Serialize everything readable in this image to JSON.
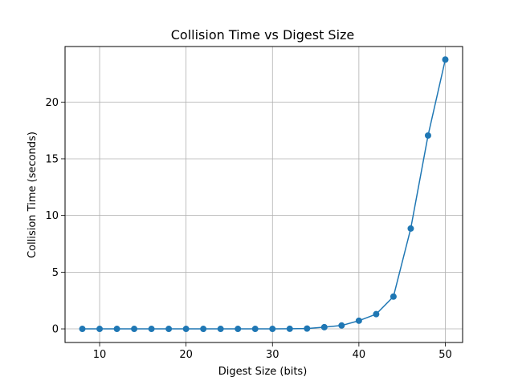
{
  "chart_data": {
    "type": "line",
    "title": "Collision Time vs Digest Size",
    "xlabel": "Digest Size (bits)",
    "ylabel": "Collision Time (seconds)",
    "xlim": [
      6,
      52
    ],
    "ylim": [
      -1.2,
      24.9
    ],
    "xticks": [
      10,
      20,
      30,
      40,
      50
    ],
    "yticks": [
      0,
      5,
      10,
      15,
      20
    ],
    "grid": true,
    "series": [
      {
        "color": "#1f77b4",
        "marker": "circle",
        "x": [
          8,
          10,
          12,
          14,
          16,
          18,
          20,
          22,
          24,
          26,
          28,
          30,
          32,
          34,
          36,
          38,
          40,
          42,
          44,
          46,
          48,
          50
        ],
        "y": [
          0,
          0,
          0,
          0,
          0,
          0,
          0,
          0,
          0,
          0,
          0,
          0,
          0.01,
          0.03,
          0.15,
          0.3,
          0.72,
          1.3,
          2.85,
          8.85,
          17.05,
          23.75
        ]
      }
    ]
  }
}
